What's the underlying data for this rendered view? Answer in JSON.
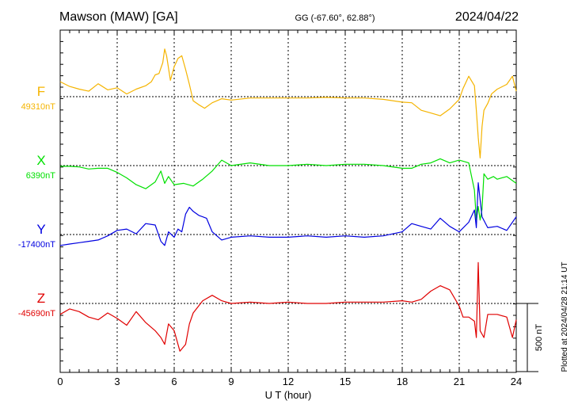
{
  "header": {
    "station": "Mawson (MAW)  [GA]",
    "coords": "GG (-67.60°,  62.88°)",
    "date": "2024/04/22"
  },
  "footer": {
    "plotted": "Plotted at 2024/04/28 21:14 UT"
  },
  "chart_data": {
    "type": "line",
    "xlabel": "U T (hour)",
    "xlim": [
      0,
      24
    ],
    "x_ticks": [
      "0",
      "3",
      "6",
      "9",
      "12",
      "15",
      "18",
      "21",
      "24"
    ],
    "scale_bar": {
      "label": "500 nT",
      "value_nT": 500
    },
    "series": [
      {
        "name": "F",
        "baseline_label": "49310nT",
        "baseline_nT": 49310,
        "color": "#f5b400",
        "x": [
          0,
          0.5,
          1,
          1.5,
          2,
          2.5,
          3,
          3.5,
          4,
          4.5,
          4.8,
          5,
          5.2,
          5.4,
          5.5,
          5.6,
          5.8,
          6,
          6.2,
          6.4,
          6.6,
          6.8,
          7,
          7.3,
          7.6,
          8,
          8.5,
          9,
          10,
          11,
          12,
          13,
          14,
          15,
          16,
          17,
          18,
          18.5,
          19,
          19.5,
          20,
          20.5,
          21,
          21.2,
          21.5,
          21.8,
          21.9,
          22,
          22.1,
          22.2,
          22.3,
          22.5,
          22.7,
          23,
          23.5,
          23.8,
          24
        ],
        "y": [
          110,
          75,
          55,
          40,
          95,
          50,
          65,
          20,
          55,
          80,
          110,
          160,
          170,
          250,
          350,
          300,
          120,
          220,
          280,
          300,
          200,
          90,
          -30,
          -60,
          -85,
          -45,
          -15,
          -25,
          -10,
          -10,
          -10,
          -10,
          -5,
          -10,
          -10,
          -20,
          -40,
          -45,
          -100,
          -120,
          -140,
          -90,
          -20,
          60,
          150,
          80,
          -100,
          -300,
          -450,
          -220,
          -100,
          -50,
          20,
          55,
          90,
          150,
          40
        ]
      },
      {
        "name": "X",
        "baseline_label": "6390nT",
        "baseline_nT": 6390,
        "color": "#00e000",
        "x": [
          0,
          0.5,
          1,
          1.5,
          2,
          2.5,
          3,
          3.5,
          4,
          4.5,
          5,
          5.3,
          5.5,
          5.7,
          6,
          6.5,
          7,
          7.5,
          8,
          8.5,
          9,
          10,
          11,
          12,
          13,
          14,
          15,
          16,
          17,
          18,
          18.5,
          19,
          19.5,
          20,
          20.5,
          21,
          21.5,
          21.8,
          21.9,
          22,
          22.1,
          22.2,
          22.3,
          22.5,
          22.8,
          23,
          23.5,
          24
        ],
        "y": [
          -5,
          -5,
          -10,
          -25,
          -20,
          -20,
          -50,
          -90,
          -140,
          -170,
          -120,
          -40,
          -130,
          -80,
          -140,
          -130,
          -150,
          -100,
          -40,
          40,
          0,
          20,
          0,
          0,
          10,
          0,
          10,
          10,
          0,
          -20,
          -20,
          10,
          20,
          50,
          20,
          40,
          20,
          -180,
          -400,
          -300,
          -400,
          -320,
          -60,
          -100,
          -80,
          -100,
          -80,
          -130
        ]
      },
      {
        "name": "Y",
        "baseline_label": "-17400nT",
        "baseline_nT": -17400,
        "color": "#0000e0",
        "x": [
          0,
          0.5,
          1,
          1.5,
          2,
          2.5,
          3,
          3.5,
          4,
          4.5,
          5,
          5.3,
          5.5,
          5.7,
          6,
          6.2,
          6.4,
          6.6,
          6.8,
          7,
          7.3,
          7.7,
          8,
          8.5,
          9,
          10,
          11,
          12,
          13,
          14,
          15,
          16,
          17,
          18,
          18.5,
          19,
          19.5,
          20,
          20.5,
          21,
          21.5,
          21.8,
          21.9,
          22,
          22.2,
          22.5,
          23,
          23.5,
          24
        ],
        "y": [
          -80,
          -70,
          -60,
          -50,
          -40,
          -10,
          30,
          40,
          5,
          80,
          70,
          -50,
          -80,
          20,
          -20,
          40,
          20,
          150,
          200,
          170,
          140,
          120,
          20,
          -40,
          -20,
          -10,
          -20,
          -20,
          -10,
          -20,
          -10,
          -20,
          -10,
          20,
          80,
          60,
          40,
          120,
          60,
          20,
          90,
          180,
          50,
          380,
          130,
          50,
          60,
          30,
          130
        ]
      },
      {
        "name": "Z",
        "baseline_label": "-45690nT",
        "baseline_nT": -45690,
        "color": "#e00000",
        "x": [
          0,
          0.5,
          1,
          1.5,
          2,
          2.5,
          3,
          3.5,
          4,
          4.5,
          5,
          5.3,
          5.5,
          5.7,
          6,
          6.3,
          6.6,
          6.8,
          7,
          7.5,
          8,
          8.5,
          9,
          10,
          11,
          12,
          13,
          14,
          15,
          16,
          17,
          18,
          18.5,
          19,
          19.5,
          20,
          20.5,
          21,
          21.2,
          21.5,
          21.8,
          21.9,
          22,
          22.1,
          22.3,
          22.5,
          22.8,
          23,
          23.5,
          23.8,
          24
        ],
        "y": [
          -80,
          -40,
          -60,
          -100,
          -120,
          -70,
          -110,
          -160,
          -60,
          -140,
          -200,
          -250,
          -300,
          -150,
          -200,
          -350,
          -300,
          -150,
          -70,
          20,
          60,
          20,
          0,
          10,
          0,
          10,
          0,
          0,
          10,
          10,
          10,
          20,
          10,
          30,
          90,
          130,
          100,
          -20,
          -100,
          -100,
          -130,
          -250,
          300,
          -200,
          -250,
          -80,
          -80,
          -80,
          -100,
          -250,
          -120
        ]
      }
    ]
  }
}
